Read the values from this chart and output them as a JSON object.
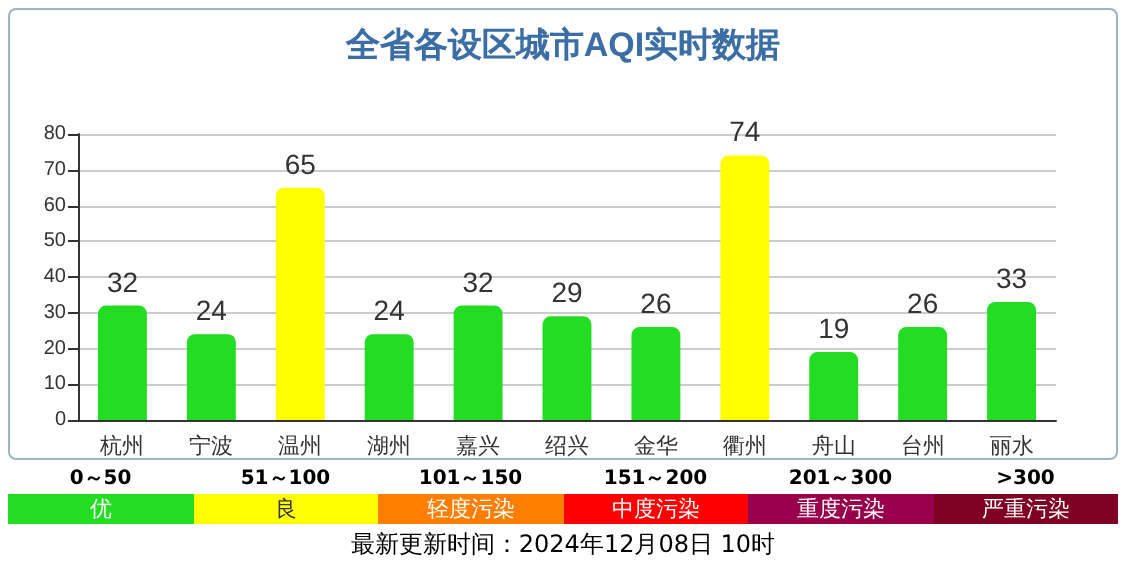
{
  "chart_data": [
    {
      "type": "bar",
      "title": "全省各设区城市AQI实时数据",
      "categories": [
        "杭州",
        "宁波",
        "温州",
        "湖州",
        "嘉兴",
        "绍兴",
        "金华",
        "衢州",
        "舟山",
        "台州",
        "丽水"
      ],
      "values": [
        32,
        24,
        65,
        24,
        32,
        29,
        26,
        74,
        19,
        26,
        33
      ],
      "colors": [
        "#22dd22",
        "#22dd22",
        "#ffff00",
        "#22dd22",
        "#22dd22",
        "#22dd22",
        "#22dd22",
        "#ffff00",
        "#22dd22",
        "#22dd22",
        "#22dd22"
      ],
      "ylim": [
        0,
        80
      ],
      "yticks": [
        0,
        10,
        20,
        30,
        40,
        50,
        60,
        70,
        80
      ],
      "grid": "y",
      "data_labels": true
    },
    {
      "type": "other",
      "categories": [
        "优",
        "良",
        "轻度污染",
        "中度污染",
        "重度污染",
        "严重污染"
      ],
      "colors": [
        "#22dd22",
        "#ffff00",
        "#ff7e00",
        "#ff0000",
        "#99004c",
        "#7e0023"
      ],
      "annotations": [
        "0～50",
        "51～100",
        "101～150",
        "151～200",
        "201～300",
        ">300",
        "最新更新时间：2024年12月08日 10时"
      ]
    }
  ]
}
